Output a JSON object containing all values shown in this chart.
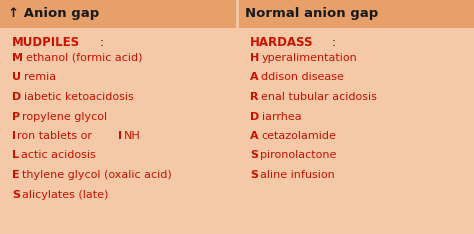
{
  "bg_color": "#f5c9a8",
  "header_bg": "#e8a06a",
  "header_text_color": "#1a1a1a",
  "red_color": "#cc1100",
  "dark_color": "#1a1a1a",
  "left_header": "↑ Anion gap",
  "right_header": "Normal anion gap",
  "left_mnemonic_bold": "MUDPILES",
  "left_mnemonic_rest": ":",
  "right_mnemonic_bold": "HARDASS",
  "right_mnemonic_rest": ":",
  "left_items": [
    [
      "M",
      "ethanol (formic acid)",
      "",
      ""
    ],
    [
      "U",
      "remia",
      "",
      ""
    ],
    [
      "D",
      "iabetic ketoacidosis",
      "",
      ""
    ],
    [
      "P",
      "ropylene glycol",
      "",
      ""
    ],
    [
      "I",
      "ron tablets or ",
      "I",
      "NH"
    ],
    [
      "L",
      "actic acidosis",
      "",
      ""
    ],
    [
      "E",
      "thylene glycol (oxalic acid)",
      "",
      ""
    ],
    [
      "S",
      "alicylates (late)",
      "",
      ""
    ]
  ],
  "right_items": [
    [
      "H",
      "yperalimentation"
    ],
    [
      "A",
      "ddison disease"
    ],
    [
      "R",
      "enal tubular acidosis"
    ],
    [
      "D",
      "iarrhea"
    ],
    [
      "A",
      "cetazolamide"
    ],
    [
      "S",
      "pironolactone"
    ],
    [
      "S",
      "aline infusion"
    ]
  ],
  "figsize": [
    4.74,
    2.34
  ],
  "dpi": 100,
  "header_fontsize": 9.5,
  "body_fontsize": 8.0,
  "mnemonic_fontsize": 8.5
}
